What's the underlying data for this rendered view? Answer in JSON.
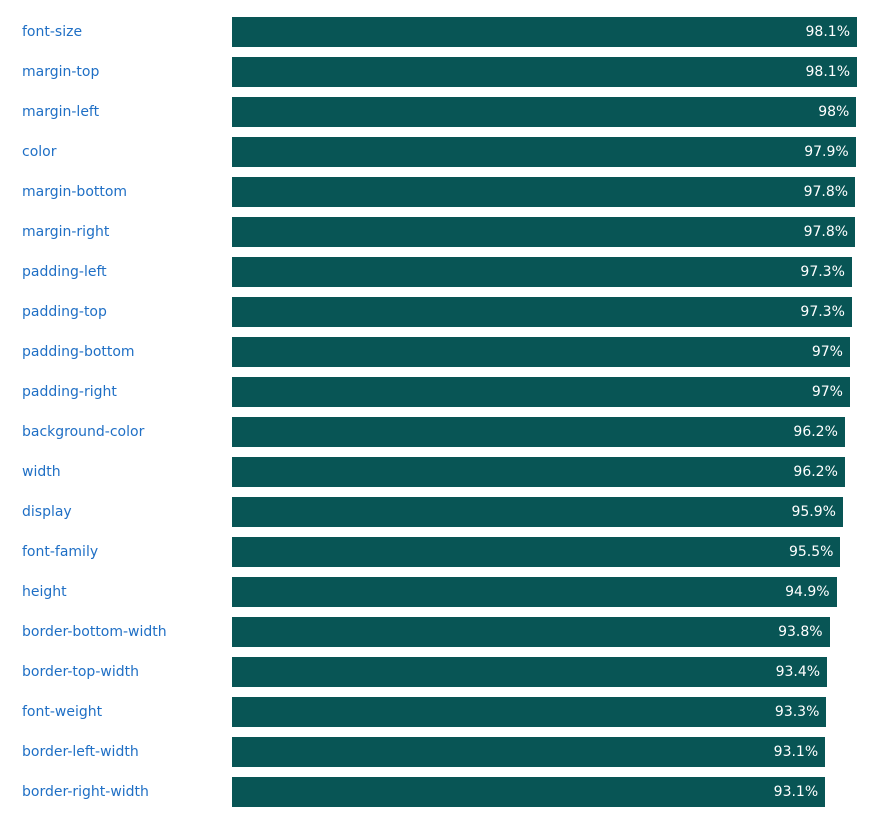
{
  "colors": {
    "bar": "#085555",
    "label": "#1f6fc5",
    "value_text": "#ffffff",
    "background": "#ffffff"
  },
  "chart_data": {
    "type": "bar",
    "orientation": "horizontal",
    "title": "",
    "xlabel": "",
    "ylabel": "",
    "xlim": [
      0,
      100
    ],
    "grid": false,
    "legend": "none",
    "categories": [
      "font-size",
      "margin-top",
      "margin-left",
      "color",
      "margin-bottom",
      "margin-right",
      "padding-left",
      "padding-top",
      "padding-bottom",
      "padding-right",
      "background-color",
      "width",
      "display",
      "font-family",
      "height",
      "border-bottom-width",
      "border-top-width",
      "font-weight",
      "border-left-width",
      "border-right-width"
    ],
    "values": [
      98.1,
      98.1,
      98,
      97.9,
      97.8,
      97.8,
      97.3,
      97.3,
      97,
      97,
      96.2,
      96.2,
      95.9,
      95.5,
      94.9,
      93.8,
      93.4,
      93.3,
      93.1,
      93.1
    ],
    "data_labels": [
      "98.1%",
      "98.1%",
      "98%",
      "97.9%",
      "97.8%",
      "97.8%",
      "97.3%",
      "97.3%",
      "97%",
      "97%",
      "96.2%",
      "96.2%",
      "95.9%",
      "95.5%",
      "94.9%",
      "93.8%",
      "93.4%",
      "93.3%",
      "93.1%",
      "93.1%"
    ]
  }
}
